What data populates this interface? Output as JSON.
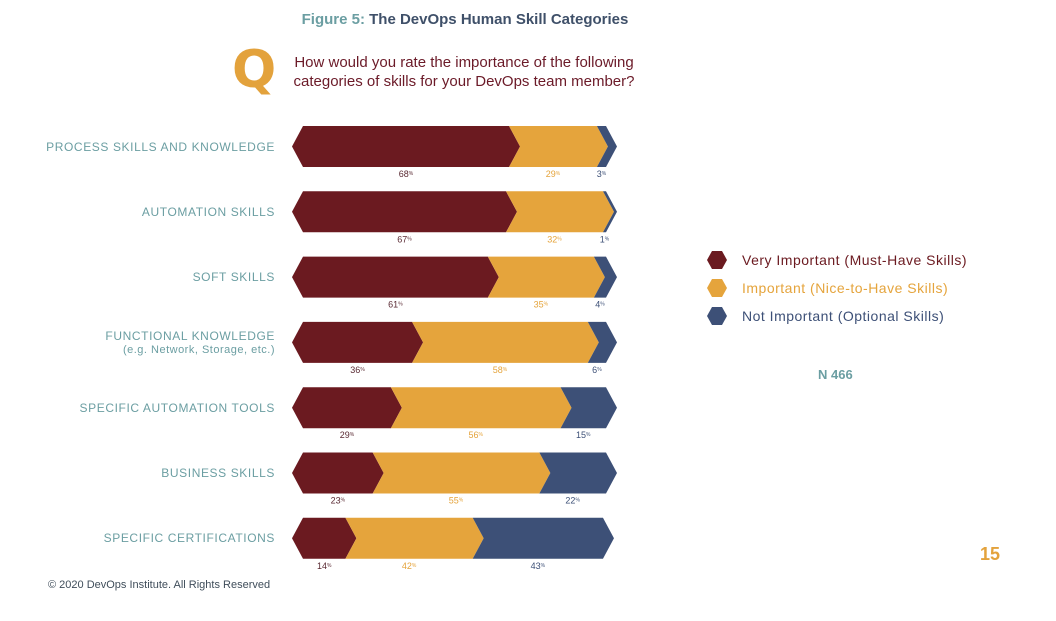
{
  "header": {
    "figure_label": "Figure 5:",
    "figure_title": "The DevOps Human Skill Categories",
    "q_letter": "Q",
    "question": "How would you rate the importance of the following categories of skills for your DevOps team member?"
  },
  "chart_data": {
    "type": "bar",
    "orientation": "horizontal",
    "stacked": true,
    "title": "The DevOps Human Skill Categories",
    "categories": [
      {
        "label": "PROCESS SKILLS AND KNOWLEDGE",
        "sub": ""
      },
      {
        "label": "AUTOMATION SKILLS",
        "sub": ""
      },
      {
        "label": "SOFT SKILLS",
        "sub": ""
      },
      {
        "label": "FUNCTIONAL KNOWLEDGE",
        "sub": "(e.g. Network, Storage, etc.)"
      },
      {
        "label": "SPECIFIC AUTOMATION TOOLS",
        "sub": ""
      },
      {
        "label": "BUSINESS SKILLS",
        "sub": ""
      },
      {
        "label": "SPECIFIC CERTIFICATIONS",
        "sub": ""
      }
    ],
    "series": [
      {
        "name": "Very Important (Must-Have Skills)",
        "color": "#6b1a20",
        "values": [
          68,
          67,
          61,
          36,
          29,
          23,
          14
        ]
      },
      {
        "name": "Important (Nice-to-Have Skills)",
        "color": "#e5a43c",
        "values": [
          29,
          32,
          35,
          58,
          56,
          55,
          42
        ]
      },
      {
        "name": "Not Important (Optional Skills)",
        "color": "#3d5077",
        "values": [
          3,
          1,
          4,
          6,
          15,
          22,
          43
        ]
      }
    ],
    "value_suffix": "%",
    "legend_position": "right",
    "xlim": [
      0,
      100
    ]
  },
  "n_label": "N 466",
  "page_number": "15",
  "footer": "© 2020 DevOps Institute. All Rights Reserved"
}
